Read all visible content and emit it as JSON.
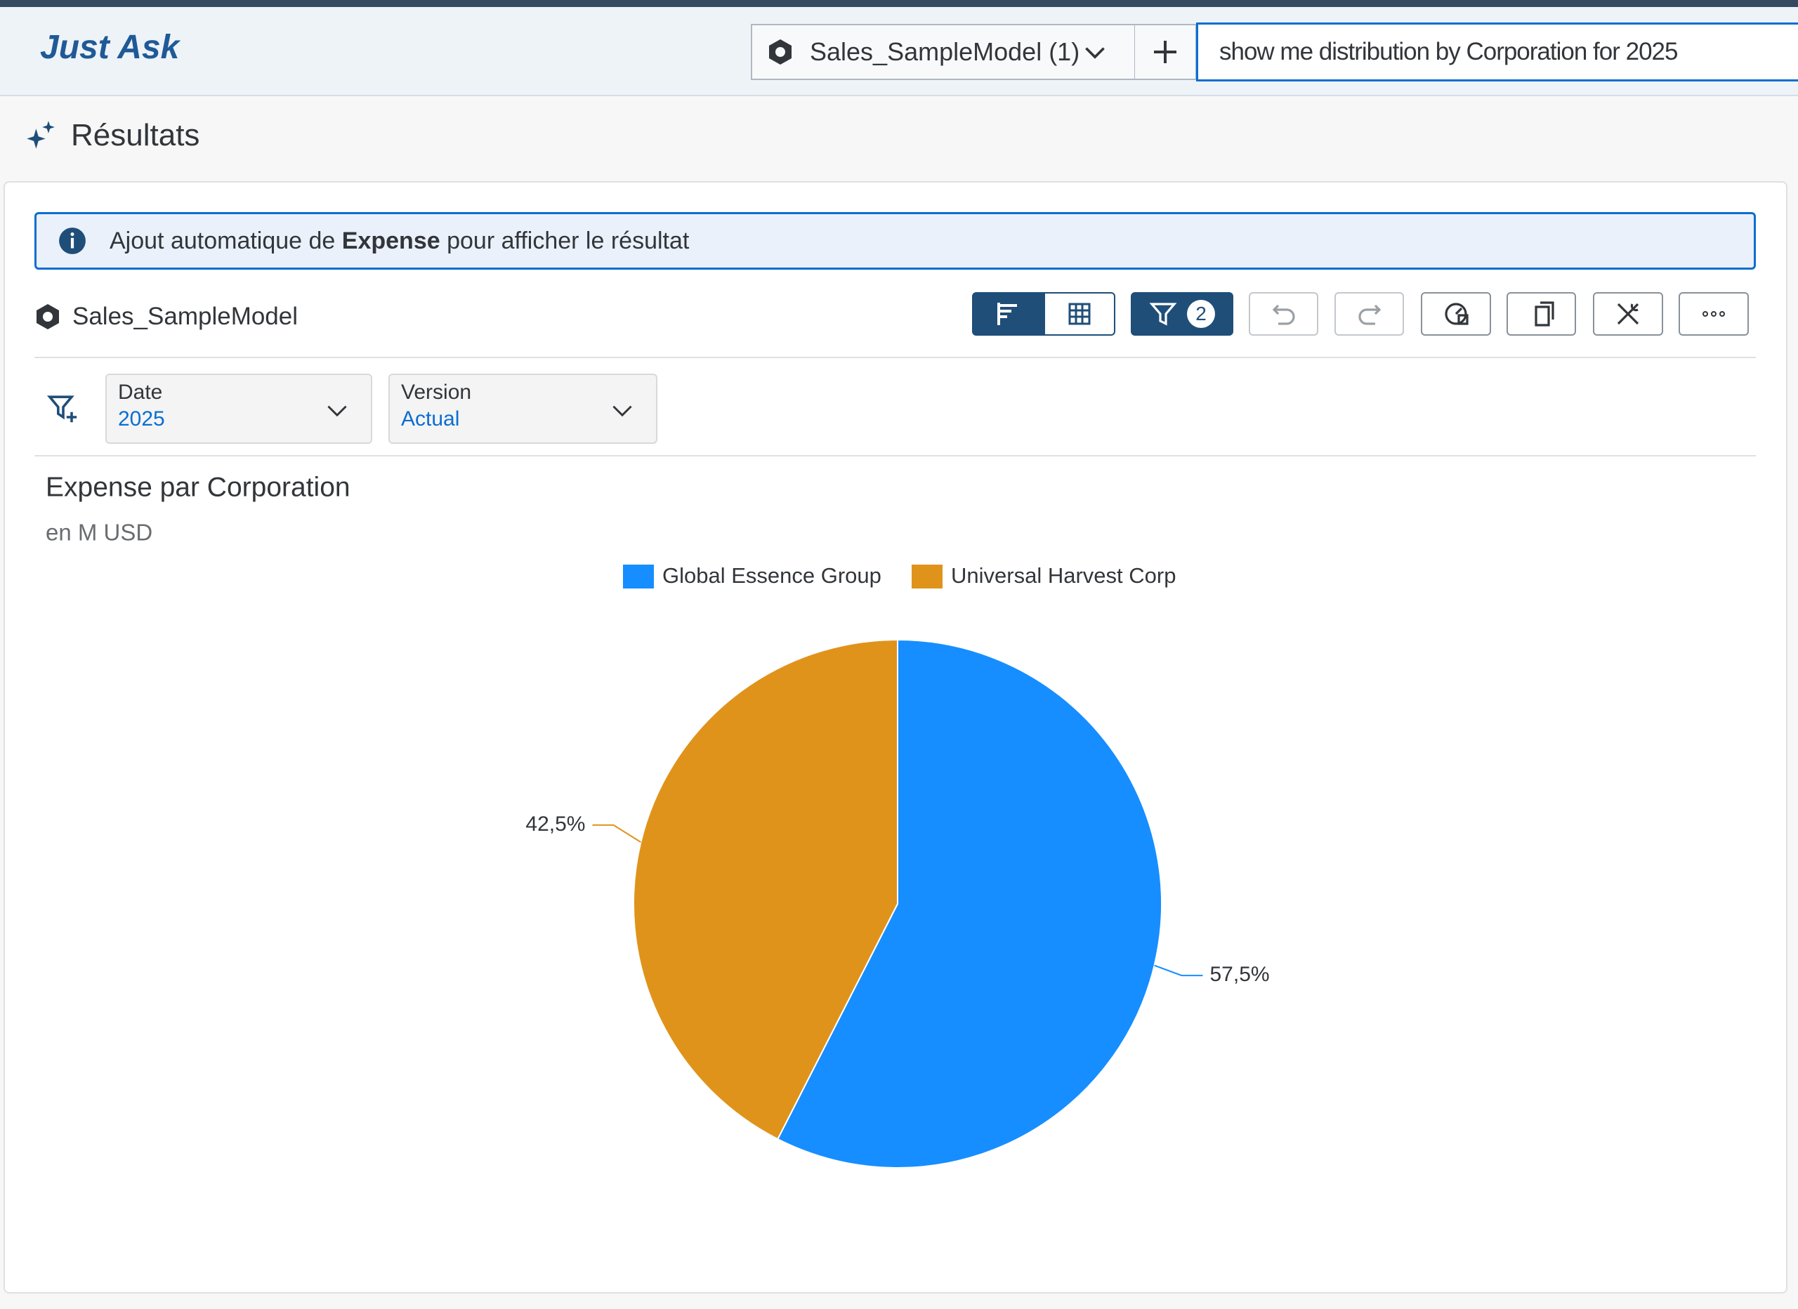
{
  "header": {
    "title": "Just Ask",
    "model_selector": "Sales_SampleModel (1)",
    "query": "show me distribution by Corporation for 2025"
  },
  "results": {
    "title": "Résultats"
  },
  "banner": {
    "before": "Ajout automatique de",
    "bold": "Expense",
    "after": "pour afficher le résultat"
  },
  "model": "Sales_SampleModel",
  "toolbar": {
    "filter_count": "2"
  },
  "filters": [
    {
      "label": "Date",
      "value": "2025"
    },
    {
      "label": "Version",
      "value": "Actual"
    }
  ],
  "chart_data": {
    "type": "pie",
    "title": "Expense par Corporation",
    "subtitle": "en M USD",
    "categories": [
      "Global Essence Group",
      "Universal Harvest Corp"
    ],
    "values": [
      57.5,
      42.5
    ],
    "value_labels": [
      "57,5%",
      "42,5%"
    ],
    "colors": [
      "#168eff",
      "#e0931b"
    ]
  }
}
